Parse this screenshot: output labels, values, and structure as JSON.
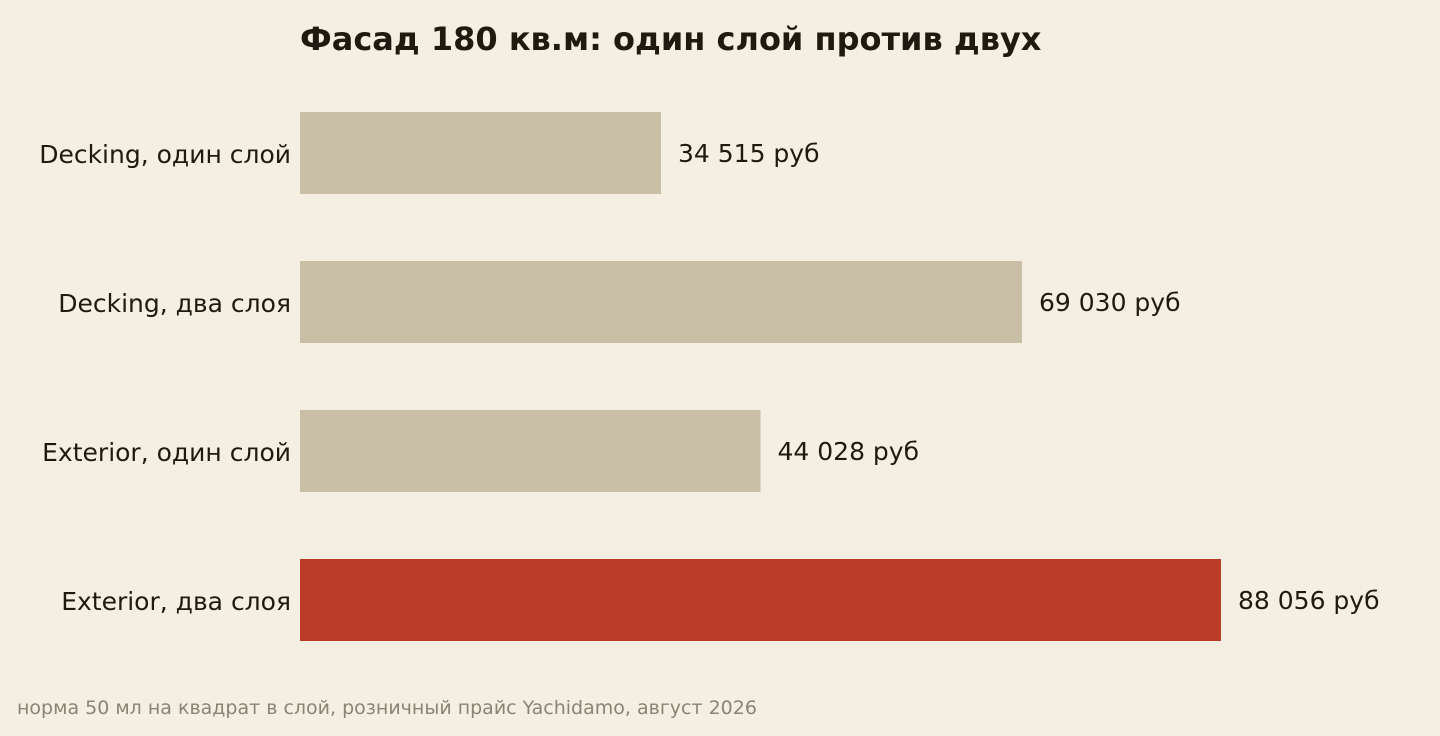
{
  "chart_data": {
    "type": "bar",
    "orientation": "horizontal",
    "title": "Фасад 180 кв.м: один слой против двух",
    "categories": [
      "Decking, один слой",
      "Decking, два слоя",
      "Exterior, один слой",
      "Exterior, два слоя"
    ],
    "values": [
      34515,
      69030,
      44028,
      88056
    ],
    "value_labels": [
      "34 515 руб",
      "69 030 руб",
      "44 028 руб",
      "88 056 руб"
    ],
    "highlight_index": 3,
    "xlim": [
      0,
      100000
    ],
    "grid": false,
    "legend": "none",
    "colors": {
      "default": "#c9bfa7",
      "highlight": "#bc3d27"
    },
    "footnote": "норма 50 мл на квадрат в слой, розничный прайс Yachidamo, август 2026"
  }
}
